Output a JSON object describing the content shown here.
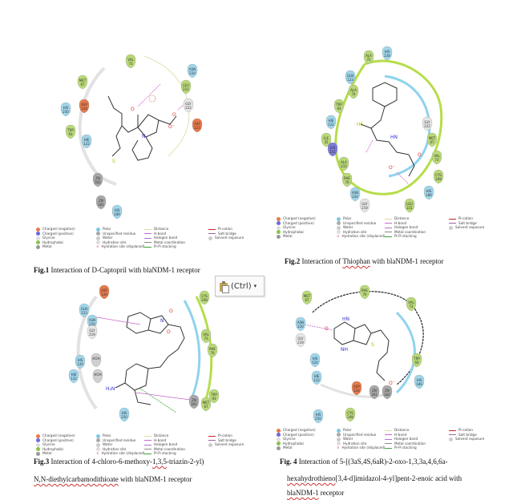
{
  "legend": {
    "items": [
      {
        "label": "Charged (negative)",
        "color": "#e8794a",
        "kind": "dot"
      },
      {
        "label": "Charged (positive)",
        "color": "#6a6ae0",
        "kind": "dot"
      },
      {
        "label": "Glycine",
        "color": "#dddddd",
        "kind": "dot"
      },
      {
        "label": "Hydrophobic",
        "color": "#8bc34a",
        "kind": "dot"
      },
      {
        "label": "Metal",
        "color": "#999999",
        "kind": "dot"
      },
      {
        "label": "Polar",
        "color": "#7ec8e3",
        "kind": "dot"
      },
      {
        "label": "Unspecified residue",
        "color": "#aaaaaa",
        "kind": "dot"
      },
      {
        "label": "Water",
        "color": "#cccccc",
        "kind": "dot"
      },
      {
        "label": "Hydration site",
        "color": "#dddddd",
        "kind": "dot"
      },
      {
        "label": "Hydration site (displaced)",
        "color": "#cc3333",
        "kind": "cross"
      },
      {
        "label": "Distance",
        "color": "#dddd99",
        "kind": "line"
      },
      {
        "label": "H-bond",
        "color": "#cc66cc",
        "kind": "line"
      },
      {
        "label": "Halogen bond",
        "color": "#aa77cc",
        "kind": "line"
      },
      {
        "label": "Metal coordination",
        "color": "#888888",
        "kind": "line"
      },
      {
        "label": "Pi-Pi stacking",
        "color": "#33aa33",
        "kind": "line"
      },
      {
        "label": "Pi-cation",
        "color": "#cc2222",
        "kind": "line"
      },
      {
        "label": "Salt bridge",
        "color": "#9966aa",
        "kind": "line"
      },
      {
        "label": "Solvent exposure",
        "color": "#cccccc",
        "kind": "dot"
      }
    ]
  },
  "panels": {
    "fig1": {
      "residues": [
        {
          "name": "VAL",
          "num": "73",
          "type": "hydrophobic"
        },
        {
          "name": "MET",
          "num": "67",
          "type": "hydrophobic"
        },
        {
          "name": "ASP",
          "num": "124",
          "type": "negative"
        },
        {
          "name": "HIS",
          "num": "250",
          "type": "polar"
        },
        {
          "name": "TRP",
          "num": "93",
          "type": "hydrophobic"
        },
        {
          "name": "HIE",
          "num": "122",
          "type": "polar"
        },
        {
          "name": "ASN",
          "num": "220",
          "type": "polar"
        },
        {
          "name": "LEU",
          "num": "221",
          "type": "hydrophobic"
        },
        {
          "name": "GLY",
          "num": "222",
          "type": "glycine"
        },
        {
          "name": "ASP",
          "num": "223",
          "type": "negative"
        },
        {
          "name": "ZN",
          "num": "302",
          "type": "metal"
        },
        {
          "name": "ZN",
          "num": "301",
          "type": "metal"
        },
        {
          "name": "HIS",
          "num": "189",
          "type": "polar"
        },
        {
          "name": "CYS",
          "num": "208",
          "type": "hydrophobic"
        }
      ],
      "caption_label": "Fig.1",
      "caption_text": " Interaction of D-Captopril with  blaNDM-1 receptor"
    },
    "fig2": {
      "residues": [
        {
          "name": "ALA",
          "num": "72",
          "type": "hydrophobic"
        },
        {
          "name": "HIS",
          "num": "228",
          "type": "polar"
        },
        {
          "name": "GLN",
          "num": "123",
          "type": "polar"
        },
        {
          "name": "ALA",
          "num": "74",
          "type": "hydrophobic"
        },
        {
          "name": "TRP",
          "num": "93",
          "type": "hydrophobic"
        },
        {
          "name": "HIE",
          "num": "122",
          "type": "polar"
        },
        {
          "name": "ILE",
          "num": "35",
          "type": "hydrophobic"
        },
        {
          "name": "LYS",
          "num": "211",
          "type": "positive"
        },
        {
          "name": "ALA",
          "num": "215",
          "type": "hydrophobic"
        },
        {
          "name": "PHE",
          "num": "70",
          "type": "hydrophobic"
        },
        {
          "name": "ASN",
          "num": "220",
          "type": "polar"
        },
        {
          "name": "GLY",
          "num": "219",
          "type": "glycine"
        },
        {
          "name": "GLY",
          "num": "222",
          "type": "glycine"
        },
        {
          "name": "MET",
          "num": "67",
          "type": "hydrophobic"
        },
        {
          "name": "VAL",
          "num": "73",
          "type": "hydrophobic"
        },
        {
          "name": "CYS",
          "num": "208",
          "type": "hydrophobic"
        },
        {
          "name": "HIS",
          "num": "189",
          "type": "polar"
        },
        {
          "name": "LEU",
          "num": "221",
          "type": "hydrophobic"
        }
      ],
      "caption_label": "Fig.2",
      "caption_pre": "  Interaction of ",
      "caption_word": "Thiophan",
      "caption_post": " with blaNDM-1 receptor"
    },
    "fig3": {
      "residues": [
        {
          "name": "ASP",
          "num": "124",
          "type": "negative"
        },
        {
          "name": "GLN",
          "num": "123",
          "type": "polar"
        },
        {
          "name": "ASN",
          "num": "220",
          "type": "polar"
        },
        {
          "name": "GLY",
          "num": "219",
          "type": "glycine"
        },
        {
          "name": "HIS",
          "num": "120",
          "type": "polar"
        },
        {
          "name": "HOH",
          "num": "",
          "type": "water"
        },
        {
          "name": "HOH",
          "num": "",
          "type": "water"
        },
        {
          "name": "HIE",
          "num": "122",
          "type": "polar"
        },
        {
          "name": "CYS",
          "num": "208",
          "type": "hydrophobic"
        },
        {
          "name": "VAL",
          "num": "73",
          "type": "hydrophobic"
        },
        {
          "name": "PHE",
          "num": "70",
          "type": "hydrophobic"
        },
        {
          "name": "TRP",
          "num": "93",
          "type": "hydrophobic"
        },
        {
          "name": "MET",
          "num": "67",
          "type": "hydrophobic"
        },
        {
          "name": "HIS",
          "num": "250",
          "type": "polar"
        },
        {
          "name": "ZN",
          "num": "301",
          "type": "metal"
        }
      ],
      "caption_label": "Fig.3",
      "caption_line1_pre": " Interaction of 4-chloro-6-methoxy-",
      "caption_line1_sq": "1,3,5",
      "caption_line1_post": "-triazin-2-yl)",
      "caption_line2_sq": "N,N-diethylcarbamodithioate",
      "caption_line2_post": " with blaNDM-1 receptor"
    },
    "fig4": {
      "residues": [
        {
          "name": "MET",
          "num": "67",
          "type": "hydrophobic"
        },
        {
          "name": "PHE",
          "num": "70",
          "type": "hydrophobic"
        },
        {
          "name": "VAL",
          "num": "73",
          "type": "hydrophobic"
        },
        {
          "name": "ASN",
          "num": "220",
          "type": "polar"
        },
        {
          "name": "GLY",
          "num": "219",
          "type": "glycine"
        },
        {
          "name": "HIS",
          "num": "120",
          "type": "polar"
        },
        {
          "name": "HIE",
          "num": "122",
          "type": "polar"
        },
        {
          "name": "ASP",
          "num": "124",
          "type": "negative"
        },
        {
          "name": "TRP",
          "num": "93",
          "type": "hydrophobic"
        },
        {
          "name": "ZN",
          "num": "301",
          "type": "metal"
        },
        {
          "name": "ZN",
          "num": "302",
          "type": "metal"
        },
        {
          "name": "HIS",
          "num": "189",
          "type": "polar"
        },
        {
          "name": "CYS",
          "num": "208",
          "type": "hydrophobic"
        },
        {
          "name": "HIS",
          "num": "250",
          "type": "polar"
        }
      ],
      "caption_label": "Fig. 4",
      "caption_line1": " Interaction of 5-[(3aS,4S,6aR)-2-oxo-1,3,3a,4,6,6a-",
      "caption_line2_sq": "hexahydrothieno",
      "caption_line2_post": "[3,4-d]imidazol-4-yl]pent-2-enoic acid with",
      "caption_line3_sq": "blaNDM-1",
      "caption_line3_post": " receptor"
    }
  },
  "paste_popup": {
    "label": "(Ctrl)",
    "icon": "clipboard-icon"
  },
  "colors": {
    "hydrophobic": "#b9d977",
    "polar": "#9fd6ec",
    "negative": "#e8794a",
    "positive": "#7b7be0",
    "glycine": "#e6e6e6",
    "metal": "#a8a8a8",
    "water": "#d0d0d0",
    "hbond": "#cc66cc",
    "pistack": "#33aa33",
    "pocket_green": "#b6dd4a",
    "pocket_blue": "#8fd3ee"
  }
}
